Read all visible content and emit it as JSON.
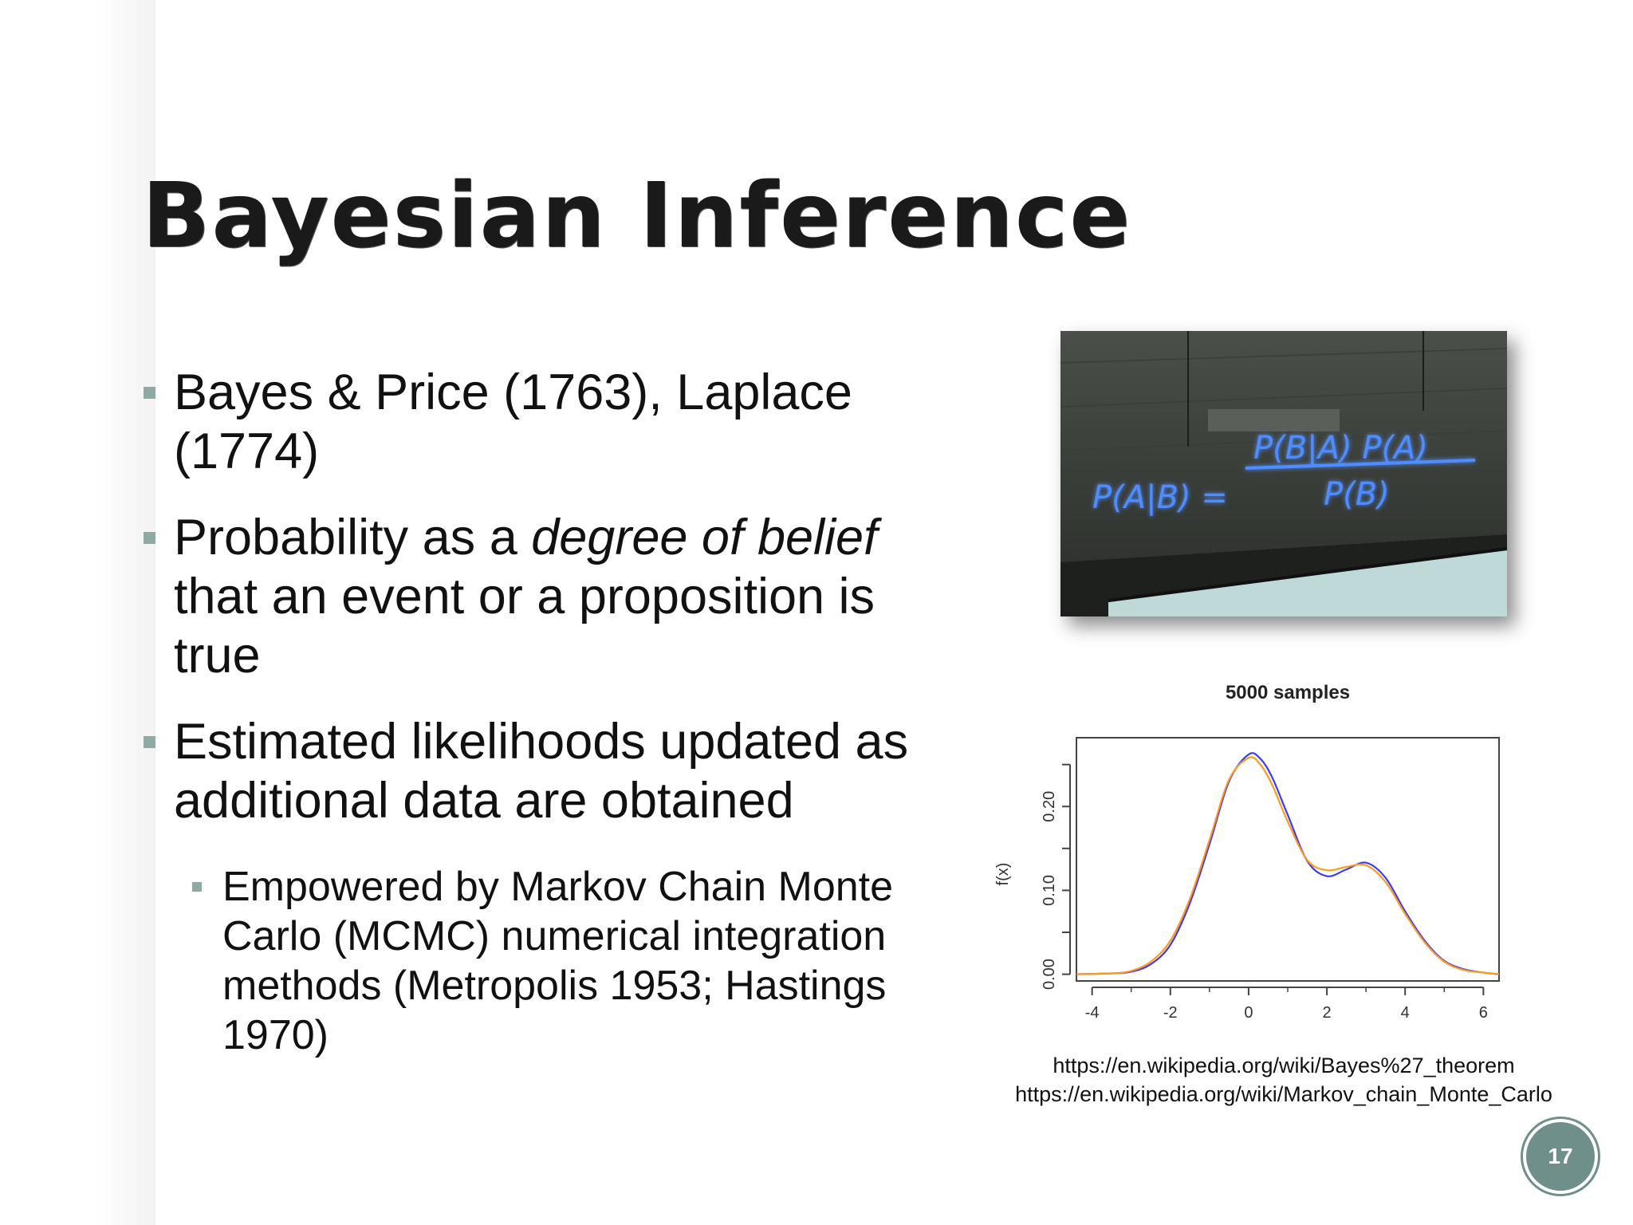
{
  "slide": {
    "title": "Bayesian Inference",
    "page_number": "17"
  },
  "bullets": [
    {
      "text": "Bayes & Price (1763), Laplace (1774)"
    },
    {
      "before": "Probability as a ",
      "emph": "degree of belief",
      "after": " that an event or a proposition is true"
    },
    {
      "text": "Estimated likelihoods updated as additional data are obtained"
    }
  ],
  "sub_bullet": "Empowered by Markov Chain Monte Carlo (MCMC) numerical integration methods (Metropolis 1953; Hastings 1970)",
  "photo": {
    "formula_left": "P(A|B) =",
    "formula_num": "P(B|A) P(A)",
    "formula_den": "P(B)",
    "neon_color": "#3d7bff"
  },
  "sources": [
    "https://en.wikipedia.org/wiki/Bayes%27_theorem",
    "https://en.wikipedia.org/wiki/Markov_chain_Monte_Carlo"
  ],
  "chart_data": {
    "type": "line",
    "title": "5000  samples",
    "xlabel": "",
    "ylabel": "f(x)",
    "xlim": [
      -4.4,
      6.4
    ],
    "ylim": [
      -0.008,
      0.282
    ],
    "x_ticks": [
      -4,
      -2,
      0,
      2,
      4,
      6
    ],
    "y_ticks": [
      0.0,
      0.1,
      0.2
    ],
    "y_tick_labels": [
      "0.00",
      "0.10",
      "0.20"
    ],
    "series": [
      {
        "color": "#3a3aff",
        "x": [
          -4.4,
          -3.5,
          -3.0,
          -2.5,
          -2.0,
          -1.5,
          -1.0,
          -0.5,
          0.0,
          0.3,
          0.6,
          1.0,
          1.5,
          2.0,
          2.5,
          3.0,
          3.5,
          4.0,
          4.5,
          5.0,
          5.5,
          6.0,
          6.4
        ],
        "values": [
          0.0,
          0.001,
          0.003,
          0.012,
          0.035,
          0.085,
          0.155,
          0.23,
          0.262,
          0.257,
          0.235,
          0.19,
          0.135,
          0.117,
          0.125,
          0.133,
          0.115,
          0.075,
          0.04,
          0.016,
          0.006,
          0.002,
          0.0
        ]
      },
      {
        "color": "#ff9a1a",
        "x": [
          -4.4,
          -3.5,
          -3.0,
          -2.5,
          -2.0,
          -1.5,
          -1.0,
          -0.5,
          0.0,
          0.3,
          0.6,
          1.0,
          1.5,
          2.0,
          2.5,
          3.0,
          3.5,
          4.0,
          4.5,
          5.0,
          5.5,
          6.0,
          6.4
        ],
        "values": [
          0.0,
          0.001,
          0.004,
          0.015,
          0.04,
          0.09,
          0.16,
          0.232,
          0.258,
          0.25,
          0.226,
          0.182,
          0.136,
          0.124,
          0.128,
          0.13,
          0.11,
          0.072,
          0.038,
          0.015,
          0.005,
          0.002,
          0.0
        ]
      }
    ],
    "grid": false,
    "legend": "none"
  }
}
